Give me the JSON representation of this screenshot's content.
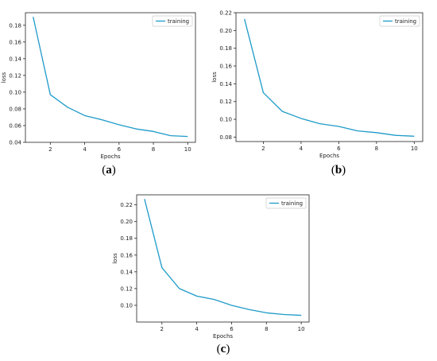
{
  "chart_data": [
    {
      "type": "line",
      "panel": "(a)",
      "caption_letter": "a",
      "xlabel": "Epochs",
      "ylabel": "loss",
      "xlim": [
        0.55,
        10.45
      ],
      "ylim": [
        0.04,
        0.195
      ],
      "xticks": [
        2,
        4,
        6,
        8,
        10
      ],
      "yticks": [
        0.04,
        0.06,
        0.08,
        0.1,
        0.12,
        0.14,
        0.16,
        0.18
      ],
      "legend_position": "top-right",
      "grid": false,
      "series": [
        {
          "name": "training",
          "color": "#1f9ac9",
          "x": [
            1,
            2,
            3,
            4,
            5,
            6,
            7,
            8,
            9,
            10
          ],
          "y": [
            0.19,
            0.097,
            0.082,
            0.072,
            0.067,
            0.061,
            0.056,
            0.053,
            0.048,
            0.047
          ]
        }
      ]
    },
    {
      "type": "line",
      "panel": "(b)",
      "caption_letter": "b",
      "xlabel": "Epochs",
      "ylabel": "loss",
      "xlim": [
        0.55,
        10.45
      ],
      "ylim": [
        0.075,
        0.22
      ],
      "xticks": [
        2,
        4,
        6,
        8,
        10
      ],
      "yticks": [
        0.08,
        0.1,
        0.12,
        0.14,
        0.16,
        0.18,
        0.2,
        0.22
      ],
      "legend_position": "top-right",
      "grid": false,
      "series": [
        {
          "name": "training",
          "color": "#1f9ac9",
          "x": [
            1,
            2,
            3,
            4,
            5,
            6,
            7,
            8,
            9,
            10
          ],
          "y": [
            0.213,
            0.13,
            0.109,
            0.101,
            0.095,
            0.092,
            0.087,
            0.085,
            0.082,
            0.081
          ]
        }
      ]
    },
    {
      "type": "line",
      "panel": "(c)",
      "caption_letter": "c",
      "xlabel": "Epochs",
      "ylabel": "loss",
      "xlim": [
        0.55,
        10.45
      ],
      "ylim": [
        0.08,
        0.232
      ],
      "xticks": [
        2,
        4,
        6,
        8,
        10
      ],
      "yticks": [
        0.1,
        0.12,
        0.14,
        0.16,
        0.18,
        0.2,
        0.22
      ],
      "legend_position": "top-right",
      "grid": false,
      "series": [
        {
          "name": "training",
          "color": "#1f9ac9",
          "x": [
            1,
            2,
            3,
            4,
            5,
            6,
            7,
            8,
            9,
            10
          ],
          "y": [
            0.227,
            0.145,
            0.12,
            0.111,
            0.107,
            0.1,
            0.095,
            0.091,
            0.089,
            0.088
          ]
        }
      ]
    }
  ]
}
